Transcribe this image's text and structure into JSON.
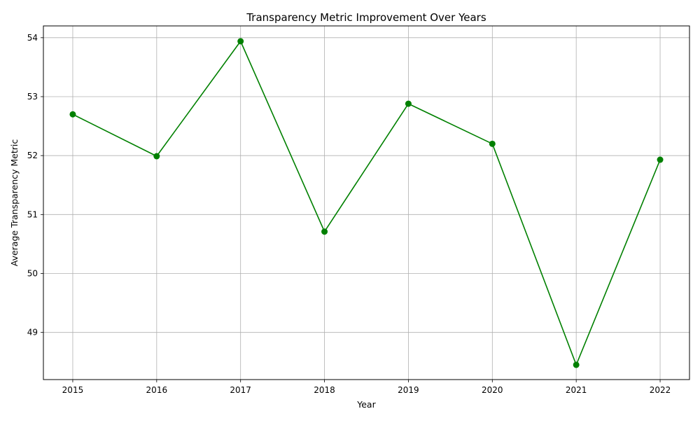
{
  "chart_data": {
    "type": "line",
    "title": "Transparency Metric Improvement Over Years",
    "xlabel": "Year",
    "ylabel": "Average Transparency Metric",
    "x": [
      2015,
      2016,
      2017,
      2018,
      2019,
      2020,
      2021,
      2022
    ],
    "series": [
      {
        "values": [
          52.7,
          51.99,
          53.94,
          50.71,
          52.88,
          52.2,
          48.45,
          51.93
        ],
        "color": "#008000",
        "marker": "circle"
      }
    ],
    "xlim": [
      2014.65,
      2022.35
    ],
    "ylim": [
      48.2,
      54.2
    ],
    "x_ticks": [
      "2015",
      "2016",
      "2017",
      "2018",
      "2019",
      "2020",
      "2021",
      "2022"
    ],
    "y_ticks": [
      "49",
      "50",
      "51",
      "52",
      "53",
      "54"
    ],
    "grid": true,
    "legend": false
  }
}
